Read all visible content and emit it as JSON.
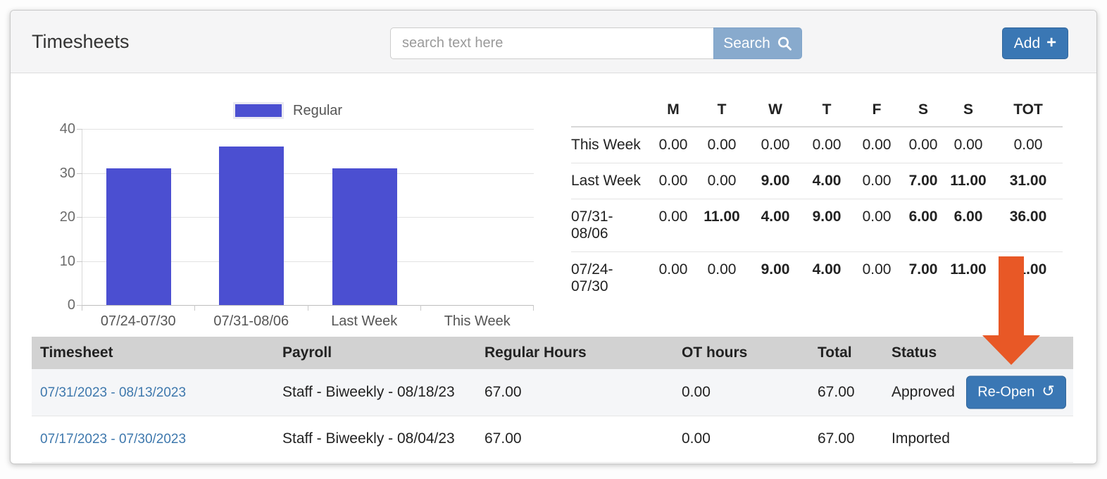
{
  "title": "Timesheets",
  "header": {
    "search": {
      "placeholder": "search text here",
      "button_label": "Search",
      "icon": "magnifier"
    },
    "add_button": {
      "label": "Add",
      "icon_glyph": "+"
    }
  },
  "chart_data": {
    "type": "bar",
    "title": "",
    "categories": [
      "07/24-07/30",
      "07/31-08/06",
      "Last Week",
      "This Week"
    ],
    "series": [
      {
        "name": "Regular",
        "values": [
          31,
          36,
          31,
          0
        ]
      }
    ],
    "legend": [
      {
        "label": "Regular",
        "color": "#4b4fd1"
      }
    ],
    "legend_position": "top",
    "xlabel": "",
    "ylabel": "",
    "ylim": [
      0,
      40
    ],
    "yticks": [
      "40",
      "30",
      "20",
      "10",
      "0"
    ],
    "grid": true
  },
  "week_summary": {
    "columns": [
      "M",
      "T",
      "W",
      "T",
      "F",
      "S",
      "S",
      "TOT"
    ],
    "rows": [
      {
        "label": "This Week",
        "values": [
          "0.00",
          "0.00",
          "0.00",
          "0.00",
          "0.00",
          "0.00",
          "0.00",
          "0.00"
        ]
      },
      {
        "label": "Last Week",
        "values": [
          "0.00",
          "0.00",
          "9.00",
          "4.00",
          "0.00",
          "7.00",
          "11.00",
          "31.00"
        ]
      },
      {
        "label": "07/31-08/06",
        "values": [
          "0.00",
          "11.00",
          "4.00",
          "9.00",
          "0.00",
          "6.00",
          "6.00",
          "36.00"
        ]
      },
      {
        "label": "07/24-07/30",
        "values": [
          "0.00",
          "0.00",
          "9.00",
          "4.00",
          "0.00",
          "7.00",
          "11.00",
          "31.00"
        ]
      }
    ]
  },
  "timesheets_table": {
    "columns": [
      "Timesheet",
      "Payroll",
      "Regular Hours",
      "OT hours",
      "Total",
      "Status",
      ""
    ],
    "rows": [
      {
        "timesheet": "07/31/2023 - 08/13/2023",
        "payroll": "Staff - Biweekly - 08/18/23",
        "regular_hours": "67.00",
        "ot_hours": "0.00",
        "total": "67.00",
        "status": "Approved",
        "action_label": "Re-Open",
        "action_icon_glyph": "↺"
      },
      {
        "timesheet": "07/17/2023 - 07/30/2023",
        "payroll": "Staff - Biweekly - 08/04/23",
        "regular_hours": "67.00",
        "ot_hours": "0.00",
        "total": "67.00",
        "status": "Imported"
      }
    ]
  },
  "annotation": {
    "type": "arrow-down",
    "color": "#e85826",
    "points_at": "Re-Open button"
  },
  "colors": {
    "bar": "#4b4fd1",
    "primary_button": "#3a77b4",
    "search_button": "#88aacd",
    "link": "#3e78ad",
    "table_header_bg": "#d2d2d2",
    "arrow": "#e85826"
  }
}
